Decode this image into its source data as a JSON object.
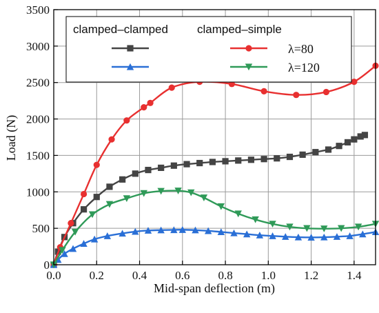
{
  "chart_data": {
    "type": "line",
    "xlabel": "Mid-span deflection (m)",
    "ylabel": "Load (N)",
    "xlim": [
      0,
      1.5
    ],
    "ylim": [
      0,
      3500
    ],
    "xticks": [
      "0.0",
      "0.2",
      "0.4",
      "0.6",
      "0.8",
      "1.0",
      "1.2",
      "1.4"
    ],
    "yticks": [
      "0",
      "500",
      "1000",
      "1500",
      "2000",
      "2500",
      "3000",
      "3500"
    ],
    "grid": true,
    "legend": {
      "placement": "top",
      "column_headers": [
        "clamped–clamped",
        "clamped–simple"
      ],
      "row_labels": [
        "λ=80",
        "λ=120"
      ]
    },
    "series": [
      {
        "group": "clamped–clamped",
        "lambda": "λ=80",
        "color": "#444444",
        "marker": "square",
        "x": [
          0.0,
          0.02,
          0.05,
          0.09,
          0.14,
          0.2,
          0.26,
          0.32,
          0.38,
          0.44,
          0.5,
          0.56,
          0.62,
          0.68,
          0.74,
          0.8,
          0.86,
          0.92,
          0.98,
          1.04,
          1.1,
          1.16,
          1.22,
          1.28,
          1.33,
          1.37,
          1.4,
          1.43,
          1.45
        ],
        "y": [
          0,
          180,
          380,
          570,
          760,
          930,
          1070,
          1170,
          1250,
          1300,
          1330,
          1360,
          1380,
          1395,
          1410,
          1420,
          1430,
          1440,
          1450,
          1460,
          1480,
          1510,
          1545,
          1580,
          1630,
          1680,
          1720,
          1760,
          1780
        ]
      },
      {
        "group": "clamped–simple",
        "lambda": "λ=80",
        "color": "#e83030",
        "marker": "circle",
        "x": [
          0.0,
          0.03,
          0.08,
          0.14,
          0.2,
          0.27,
          0.34,
          0.42,
          0.45,
          0.55,
          0.68,
          0.83,
          0.98,
          1.13,
          1.27,
          1.4,
          1.5
        ],
        "y": [
          0,
          240,
          570,
          970,
          1370,
          1720,
          1980,
          2160,
          2220,
          2430,
          2510,
          2480,
          2380,
          2330,
          2370,
          2510,
          2730
        ]
      },
      {
        "group": "clamped–clamped",
        "lambda": "λ=120",
        "color": "#2a6fd6",
        "marker": "triangle-up",
        "x": [
          0.0,
          0.02,
          0.05,
          0.09,
          0.14,
          0.19,
          0.25,
          0.32,
          0.38,
          0.44,
          0.5,
          0.56,
          0.6,
          0.66,
          0.72,
          0.78,
          0.84,
          0.9,
          0.96,
          1.02,
          1.08,
          1.14,
          1.2,
          1.26,
          1.32,
          1.38,
          1.44,
          1.5
        ],
        "y": [
          0,
          70,
          150,
          220,
          290,
          350,
          395,
          430,
          455,
          470,
          475,
          478,
          480,
          475,
          465,
          450,
          435,
          420,
          405,
          395,
          385,
          378,
          375,
          378,
          385,
          395,
          420,
          450
        ]
      },
      {
        "group": "clamped–simple",
        "lambda": "λ=120",
        "color": "#2f9a58",
        "marker": "triangle-down",
        "x": [
          0.0,
          0.04,
          0.1,
          0.18,
          0.26,
          0.34,
          0.42,
          0.5,
          0.58,
          0.64,
          0.7,
          0.78,
          0.86,
          0.94,
          1.02,
          1.1,
          1.18,
          1.26,
          1.34,
          1.42,
          1.5
        ],
        "y": [
          0,
          200,
          450,
          690,
          830,
          910,
          980,
          1010,
          1015,
          990,
          920,
          800,
          700,
          620,
          560,
          520,
          500,
          495,
          500,
          520,
          560
        ]
      }
    ]
  }
}
